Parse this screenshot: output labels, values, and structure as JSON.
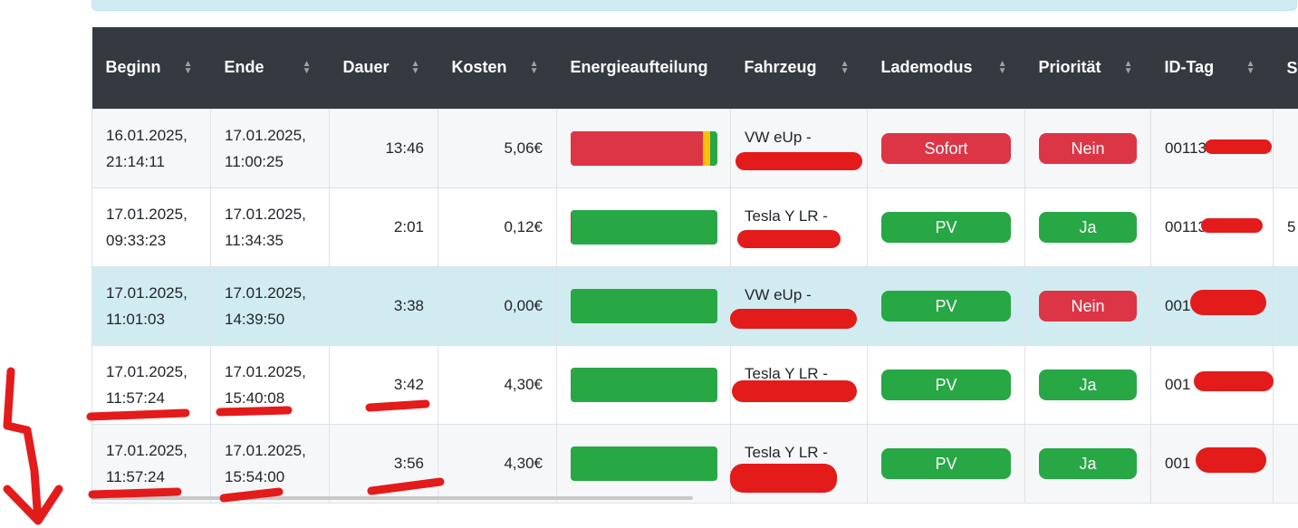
{
  "columns": [
    "Beginn",
    "Ende",
    "Dauer",
    "Kosten",
    "Energieaufteilung",
    "Fahrzeug",
    "Lademodus",
    "Priorität",
    "ID-Tag",
    "S B"
  ],
  "colors": {
    "red": "#dc3545",
    "green": "#28a745",
    "yellow": "#ffc107",
    "header": "#343a40",
    "highlight": "#d1ecf1"
  },
  "rows": [
    {
      "begin": "16.01.2025, 21:14:11",
      "end": "17.01.2025, 11:00:25",
      "duration": "13:46",
      "cost": "5,06€",
      "energy": {
        "red": 90,
        "yellow": 5,
        "green": 5
      },
      "vehicle": "VW eUp -",
      "mode": "Sofort",
      "mode_color": "red",
      "priority": "Nein",
      "priority_color": "red",
      "idtag": "00113",
      "extra": ""
    },
    {
      "begin": "17.01.2025, 09:33:23",
      "end": "17.01.2025, 11:34:35",
      "duration": "2:01",
      "cost": "0,12€",
      "energy": {
        "red": 0.7,
        "yellow": 0,
        "green": 99.3
      },
      "vehicle": "Tesla Y LR -",
      "mode": "PV",
      "mode_color": "green",
      "priority": "Ja",
      "priority_color": "green",
      "idtag": "00113",
      "extra": "5"
    },
    {
      "begin": "17.01.2025, 11:01:03",
      "end": "17.01.2025, 14:39:50",
      "duration": "3:38",
      "cost": "0,00€",
      "energy": {
        "red": 0,
        "yellow": 0,
        "green": 100
      },
      "vehicle": "VW eUp -",
      "mode": "PV",
      "mode_color": "green",
      "priority": "Nein",
      "priority_color": "red",
      "idtag": "001",
      "extra": ""
    },
    {
      "begin": "17.01.2025, 11:57:24",
      "end": "17.01.2025, 15:40:08",
      "duration": "3:42",
      "cost": "4,30€",
      "energy": {
        "red": 0,
        "yellow": 0,
        "green": 100
      },
      "vehicle": "Tesla Y LR -",
      "mode": "PV",
      "mode_color": "green",
      "priority": "Ja",
      "priority_color": "green",
      "idtag": "001",
      "extra": ""
    },
    {
      "begin": "17.01.2025, 11:57:24",
      "end": "17.01.2025, 15:54:00",
      "duration": "3:56",
      "cost": "4,30€",
      "energy": {
        "red": 0,
        "yellow": 0,
        "green": 100
      },
      "vehicle": "Tesla Y LR -",
      "mode": "PV",
      "mode_color": "green",
      "priority": "Ja",
      "priority_color": "green",
      "idtag": "001",
      "extra": ""
    }
  ]
}
